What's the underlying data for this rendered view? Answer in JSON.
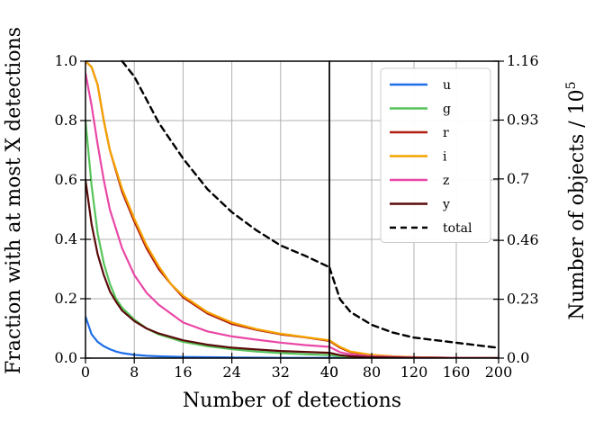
{
  "chart_data": {
    "type": "line",
    "xlabel": "Number of detections",
    "ylabel": "Fraction with at most X detections",
    "y2label": "Number of objects / 10^5",
    "y2label_main": "Number of objects / 10",
    "y2label_exp": "5",
    "ylim": [
      0,
      1
    ],
    "y_ticks": [
      "0.0",
      "0.2",
      "0.4",
      "0.6",
      "0.8",
      "1.0"
    ],
    "y_tick_values": [
      0,
      0.2,
      0.4,
      0.6,
      0.8,
      1.0
    ],
    "y2lim": [
      0,
      1.16
    ],
    "y2_ticks": [
      "0.0",
      "0.23",
      "0.46",
      "0.7",
      "0.93",
      "1.16"
    ],
    "y2_tick_values": [
      0,
      0.23,
      0.46,
      0.7,
      0.93,
      1.16
    ],
    "panels": [
      {
        "xlim": [
          0,
          40
        ],
        "x_ticks": [
          "0",
          "8",
          "16",
          "24",
          "32",
          "40"
        ],
        "x_tick_values": [
          0,
          8,
          16,
          24,
          32,
          40
        ]
      },
      {
        "xlim": [
          40,
          200
        ],
        "x_ticks": [
          "40",
          "80",
          "120",
          "160",
          "200"
        ],
        "x_tick_values": [
          40,
          80,
          120,
          160,
          200
        ]
      }
    ],
    "grid": true,
    "legend_position": "top-right",
    "series": [
      {
        "name": "u",
        "color": "#1f6fe8",
        "dash": "",
        "x": [
          0,
          1,
          2,
          3,
          4,
          5,
          6,
          8,
          10,
          12,
          16,
          20,
          24,
          28,
          32,
          36,
          40,
          80,
          120,
          160,
          200
        ],
        "y": [
          0.14,
          0.08,
          0.055,
          0.04,
          0.03,
          0.022,
          0.017,
          0.011,
          0.008,
          0.006,
          0.004,
          0.003,
          0.002,
          0.0015,
          0.001,
          0.001,
          0.001,
          0.0,
          0.0,
          0.0,
          0.0
        ]
      },
      {
        "name": "g",
        "color": "#56c45a",
        "dash": "",
        "x": [
          0,
          1,
          2,
          3,
          4,
          5,
          6,
          8,
          10,
          12,
          16,
          20,
          24,
          28,
          32,
          36,
          40,
          50,
          60,
          80,
          120,
          160,
          200
        ],
        "y": [
          0.8,
          0.58,
          0.42,
          0.32,
          0.25,
          0.2,
          0.17,
          0.13,
          0.1,
          0.08,
          0.055,
          0.04,
          0.03,
          0.022,
          0.017,
          0.013,
          0.01,
          0.006,
          0.004,
          0.002,
          0.001,
          0.0,
          0.0
        ]
      },
      {
        "name": "r",
        "color": "#b01e10",
        "dash": "",
        "x": [
          0,
          1,
          2,
          3,
          4,
          6,
          8,
          10,
          12,
          14,
          16,
          20,
          24,
          28,
          32,
          36,
          40,
          50,
          60,
          80,
          100,
          120,
          160,
          200
        ],
        "y": [
          1.0,
          0.98,
          0.92,
          0.8,
          0.7,
          0.56,
          0.46,
          0.37,
          0.3,
          0.25,
          0.205,
          0.15,
          0.115,
          0.095,
          0.08,
          0.07,
          0.058,
          0.035,
          0.02,
          0.01,
          0.005,
          0.003,
          0.001,
          0.0
        ]
      },
      {
        "name": "i",
        "color": "#f5a300",
        "dash": "",
        "x": [
          0,
          1,
          2,
          3,
          4,
          6,
          8,
          10,
          12,
          14,
          16,
          20,
          24,
          28,
          32,
          36,
          40,
          50,
          60,
          80,
          100,
          120,
          160,
          200
        ],
        "y": [
          1.0,
          0.98,
          0.92,
          0.8,
          0.7,
          0.57,
          0.47,
          0.38,
          0.31,
          0.25,
          0.21,
          0.155,
          0.12,
          0.098,
          0.082,
          0.071,
          0.06,
          0.038,
          0.022,
          0.011,
          0.006,
          0.003,
          0.001,
          0.0
        ]
      },
      {
        "name": "z",
        "color": "#ea47a6",
        "dash": "",
        "x": [
          0,
          1,
          2,
          3,
          4,
          6,
          8,
          10,
          12,
          16,
          20,
          24,
          28,
          32,
          36,
          40,
          50,
          60,
          80,
          120,
          160,
          200
        ],
        "y": [
          0.96,
          0.85,
          0.72,
          0.6,
          0.5,
          0.37,
          0.28,
          0.22,
          0.18,
          0.12,
          0.09,
          0.073,
          0.062,
          0.052,
          0.044,
          0.038,
          0.02,
          0.012,
          0.006,
          0.002,
          0.001,
          0.0
        ]
      },
      {
        "name": "y",
        "color": "#5a0a0a",
        "dash": "",
        "x": [
          0,
          1,
          2,
          3,
          4,
          5,
          6,
          8,
          10,
          12,
          16,
          20,
          24,
          28,
          32,
          36,
          40,
          50,
          60,
          80,
          120,
          160,
          200
        ],
        "y": [
          0.6,
          0.45,
          0.35,
          0.28,
          0.225,
          0.19,
          0.16,
          0.125,
          0.1,
          0.083,
          0.06,
          0.045,
          0.035,
          0.029,
          0.024,
          0.021,
          0.018,
          0.01,
          0.006,
          0.003,
          0.001,
          0.0,
          0.0
        ]
      },
      {
        "name": "total",
        "color": "#000000",
        "dash": "7,5",
        "x": [
          6,
          8,
          10,
          12,
          14,
          16,
          20,
          24,
          28,
          32,
          36,
          40,
          50,
          60,
          80,
          100,
          120,
          160,
          200
        ],
        "y": [
          1.16,
          1.1,
          1.01,
          0.92,
          0.85,
          0.78,
          0.66,
          0.57,
          0.5,
          0.44,
          0.4,
          0.355,
          0.23,
          0.18,
          0.13,
          0.1,
          0.08,
          0.06,
          0.04
        ]
      }
    ]
  }
}
